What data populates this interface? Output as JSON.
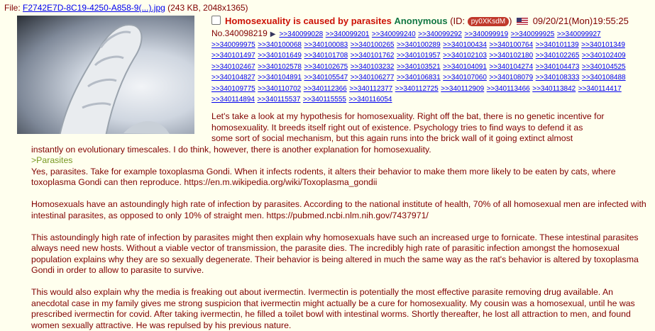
{
  "file": {
    "prefix": "File: ",
    "name": "F2742E7D-8C19-4250-A858-9(...).jpg",
    "meta": " (243 KB, 2048x1365)"
  },
  "thumbnail": {
    "alt": "parasitic worm close-up"
  },
  "post": {
    "subject": "Homosexuality is caused by parasites",
    "name": "Anonymous",
    "id_open": " (ID: ",
    "id": "py0XKsdM",
    "id_close": ")",
    "flag": "us-flag-icon",
    "datetime": "09/20/21(Mon)19:55:25",
    "no_label": "No.",
    "number": "340098219"
  },
  "backlinks": [
    [
      ">>340099028",
      ">>340099201",
      ">>340099240",
      ">>340099292",
      ">>340099919",
      ">>340099925",
      ">>340099927"
    ],
    [
      ">>340099975",
      ">>340100068",
      ">>340100083",
      ">>340100265",
      ">>340100289",
      ">>340100434",
      ">>340100764",
      ">>340101139",
      ">>340101349"
    ],
    [
      ">>340101497",
      ">>340101649",
      ">>340101708",
      ">>340101762",
      ">>340101957",
      ">>340102103",
      ">>340102180",
      ">>340102265",
      ">>340102409"
    ],
    [
      ">>340102467",
      ">>340102578",
      ">>340102675",
      ">>340103232",
      ">>340103521",
      ">>340104091",
      ">>340104274",
      ">>340104473",
      ">>340104525"
    ],
    [
      ">>340104827",
      ">>340104891",
      ">>340105547",
      ">>340106277",
      ">>340106831",
      ">>340107060",
      ">>340108079",
      ">>340108333",
      ">>340108488"
    ],
    [
      ">>340109775",
      ">>340110702",
      ">>340112366",
      ">>340112377",
      ">>340112725",
      ">>340112909",
      ">>340113466",
      ">>340113842",
      ">>340114417"
    ],
    [
      ">>340114894",
      ">>340115537",
      ">>340115555",
      ">>340116054"
    ]
  ],
  "body": {
    "p1_line1": "Let's take a look at my hypothesis for homosexuality. Right off the bat, there is no genetic incentive for",
    "p1_line2": "homosexuality. It breeds itself right out of existence. Psychology tries to find ways to defend it as",
    "p1_line3": "some sort of social mechanism, but this again runs into the brick wall of it going extinct almost",
    "p1_line4": "instantly on evolutionary timescales. I do think, however, there is another explanation for homosexuality.",
    "greentext": ">Parasites",
    "p2": "Yes, parasites. Take for example toxoplasma Gondi. When it infects rodents, it alters their behavior to make them more likely to be eaten by cats, where toxoplasma Gondi can then reproduce. https://en.m.wikipedia.org/wiki/Toxoplasma_gondii",
    "p3": "Homosexuals have an astoundingly high rate of infection by parasites. According to the national institute of health, 70% of all homosexual men are infected with intestinal parasites, as opposed to only 10% of straight men. https://pubmed.ncbi.nlm.nih.gov/7437971/",
    "p4": "This astoundingly high rate of infection by parasites might then explain why homosexuals have such an increased urge to fornicate. These intestinal parasites always need new hosts. Without a viable vector of transmission, the parasite dies. The incredibly high rate of parasitic infection amongst the homosexual population explains why they are so sexually degenerate. Their behavior is being altered in much the same way as the rat's behavior is altered by toxoplasma Gondi in order to allow to parasite to survive.",
    "p5": "This would also explain why the media is freaking out about ivermectin. Ivermectin is potentially the most effective parasite removing drug available. An anecdotal case in my family gives me strong suspicion that ivermectin might actually be a cure for homosexuality. My cousin was a homosexual, until he was prescribed ivermectin for covid. After taking ivermectin, he filled a toilet bowl with intestinal worms. Shortly thereafter, he lost all attraction to men, and found women sexually attractive. He was repulsed by his previous nature."
  }
}
